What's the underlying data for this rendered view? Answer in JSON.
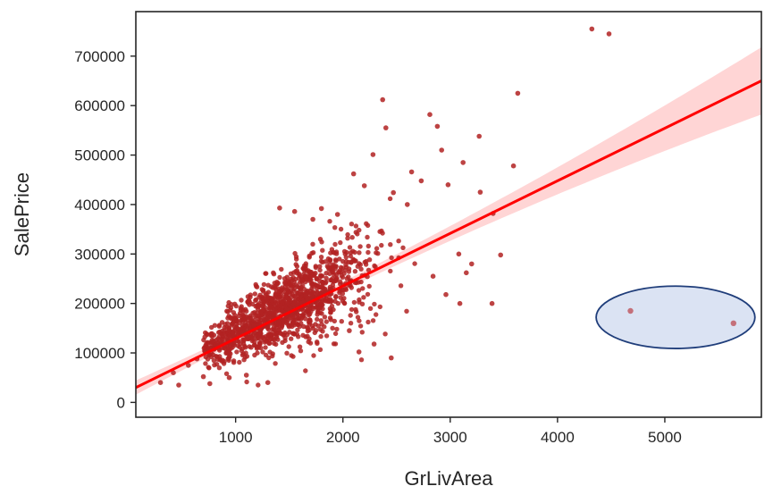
{
  "chart_data": {
    "type": "scatter",
    "title": "",
    "xlabel": "GrLivArea",
    "ylabel": "SalePrice",
    "xlim": [
      70,
      5900
    ],
    "ylim": [
      -30000,
      790000
    ],
    "xticks": [
      1000,
      2000,
      3000,
      4000,
      5000
    ],
    "yticks": [
      0,
      100000,
      200000,
      300000,
      400000,
      500000,
      600000,
      700000
    ],
    "xtick_labels": [
      "1000",
      "2000",
      "3000",
      "4000",
      "5000"
    ],
    "ytick_labels": [
      "0",
      "100000",
      "200000",
      "300000",
      "400000",
      "500000",
      "600000",
      "700000"
    ],
    "grid": false,
    "point_color": "#b22222",
    "fit_line_color": "#ff0000",
    "confidence_band_color": "#ffb3b3",
    "highlight_fill": "#d7e0f2",
    "highlight_stroke": "#1f3d7a",
    "regression": {
      "x": [
        70,
        5900
      ],
      "y": [
        30000,
        650000
      ],
      "band_half_width": [
        8000,
        14000
      ]
    },
    "points": [
      {
        "x": 4320,
        "y": 755000
      },
      {
        "x": 4480,
        "y": 745000
      },
      {
        "x": 2370,
        "y": 612000
      },
      {
        "x": 3630,
        "y": 625000
      },
      {
        "x": 2810,
        "y": 582000
      },
      {
        "x": 2400,
        "y": 555000
      },
      {
        "x": 2880,
        "y": 558000
      },
      {
        "x": 3270,
        "y": 538000
      },
      {
        "x": 2920,
        "y": 510000
      },
      {
        "x": 2280,
        "y": 501000
      },
      {
        "x": 3120,
        "y": 485000
      },
      {
        "x": 3590,
        "y": 478000
      },
      {
        "x": 2640,
        "y": 466000
      },
      {
        "x": 2100,
        "y": 462000
      },
      {
        "x": 2730,
        "y": 448000
      },
      {
        "x": 2200,
        "y": 438000
      },
      {
        "x": 2980,
        "y": 440000
      },
      {
        "x": 2470,
        "y": 424000
      },
      {
        "x": 3280,
        "y": 425000
      },
      {
        "x": 3400,
        "y": 382000
      },
      {
        "x": 3080,
        "y": 300000
      },
      {
        "x": 3470,
        "y": 298000
      },
      {
        "x": 3200,
        "y": 280000
      },
      {
        "x": 3150,
        "y": 262000
      },
      {
        "x": 3090,
        "y": 200000
      },
      {
        "x": 3390,
        "y": 200000
      },
      {
        "x": 2840,
        "y": 255000
      },
      {
        "x": 2960,
        "y": 218000
      },
      {
        "x": 1410,
        "y": 393000
      },
      {
        "x": 1550,
        "y": 386000
      },
      {
        "x": 1800,
        "y": 392000
      },
      {
        "x": 1950,
        "y": 380000
      },
      {
        "x": 1720,
        "y": 370000
      },
      {
        "x": 2600,
        "y": 400000
      },
      {
        "x": 300,
        "y": 40000
      },
      {
        "x": 420,
        "y": 60000
      },
      {
        "x": 470,
        "y": 35000
      },
      {
        "x": 560,
        "y": 75000
      },
      {
        "x": 640,
        "y": 88000
      },
      {
        "x": 700,
        "y": 52000
      },
      {
        "x": 760,
        "y": 38000
      },
      {
        "x": 2060,
        "y": 145000
      },
      {
        "x": 2290,
        "y": 118000
      },
      {
        "x": 2450,
        "y": 90000
      },
      {
        "x": 2150,
        "y": 102000
      },
      {
        "x": 1300,
        "y": 40000
      },
      {
        "x": 1100,
        "y": 55000
      },
      {
        "x": 940,
        "y": 50000
      },
      {
        "x": 4680,
        "y": 185000
      },
      {
        "x": 5640,
        "y": 160000
      }
    ],
    "cloud": {
      "count": 1300,
      "x_mean": 1450,
      "x_sd": 420,
      "y_intercept": 32000,
      "y_slope": 108,
      "y_sd_base": 22000,
      "y_sd_slope": 26
    },
    "annotations": [
      {
        "type": "ellipse",
        "cx": 5100,
        "cy": 172000,
        "rx": 740,
        "ry": 63000,
        "note": ""
      }
    ]
  }
}
